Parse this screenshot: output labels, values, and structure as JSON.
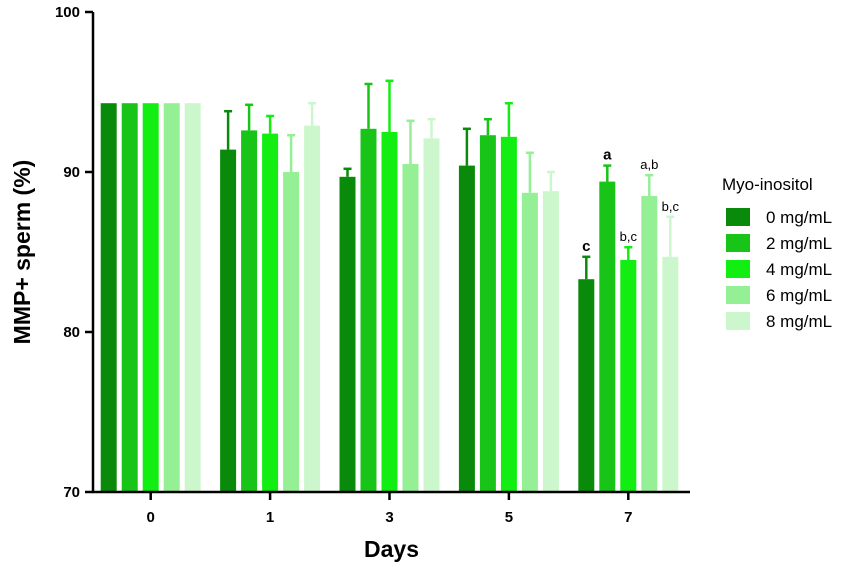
{
  "chart_data": {
    "type": "bar",
    "title": "",
    "xlabel": "Days",
    "ylabel": "MMP+ sperm (%)",
    "ylim": [
      70,
      100
    ],
    "yticks": [
      70,
      80,
      90,
      100
    ],
    "categories": [
      "0",
      "1",
      "3",
      "5",
      "7"
    ],
    "legend": {
      "title": "Myo-inositol",
      "placement": "right"
    },
    "series": [
      {
        "name": "0 mg/mL",
        "color": "#0a8a0a",
        "values": [
          94.3,
          91.4,
          89.7,
          90.4,
          83.3
        ],
        "errors": [
          0,
          2.4,
          0.5,
          2.3,
          1.4
        ]
      },
      {
        "name": "2 mg/mL",
        "color": "#18c418",
        "values": [
          94.3,
          92.6,
          92.7,
          92.3,
          89.4
        ],
        "errors": [
          0,
          1.6,
          2.8,
          1.0,
          1.0
        ]
      },
      {
        "name": "4 mg/mL",
        "color": "#12ee12",
        "values": [
          94.3,
          92.4,
          92.5,
          92.2,
          84.5
        ],
        "errors": [
          0,
          1.1,
          3.2,
          2.1,
          0.8
        ]
      },
      {
        "name": "6 mg/mL",
        "color": "#95ef95",
        "values": [
          94.3,
          90.0,
          90.5,
          88.7,
          88.5
        ],
        "errors": [
          0,
          2.3,
          2.7,
          2.5,
          1.3
        ]
      },
      {
        "name": "8 mg/mL",
        "color": "#ccf7cc",
        "values": [
          94.3,
          92.9,
          92.1,
          88.8,
          84.7
        ],
        "errors": [
          0,
          1.4,
          1.2,
          1.2,
          2.5
        ]
      }
    ],
    "annotations": [
      {
        "category": "7",
        "series": 0,
        "text": "c",
        "bold": true
      },
      {
        "category": "7",
        "series": 1,
        "text": "a",
        "bold": true
      },
      {
        "category": "7",
        "series": 2,
        "text": "b,c",
        "bold": false
      },
      {
        "category": "7",
        "series": 3,
        "text": "a,b",
        "bold": false
      },
      {
        "category": "7",
        "series": 4,
        "text": "b,c",
        "bold": false
      }
    ]
  }
}
